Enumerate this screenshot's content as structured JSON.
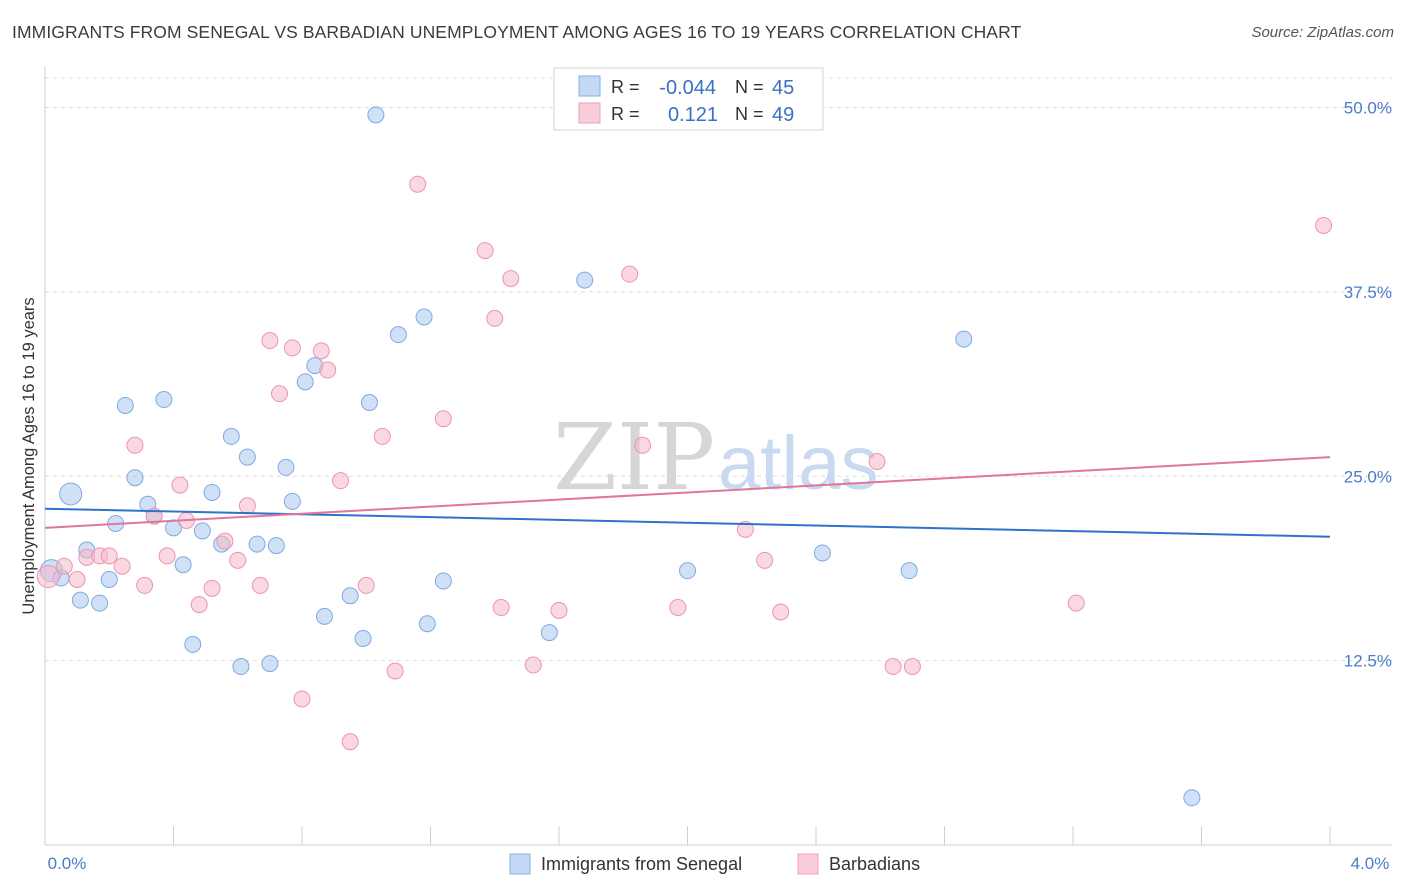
{
  "header": {
    "title": "IMMIGRANTS FROM SENEGAL VS BARBADIAN UNEMPLOYMENT AMONG AGES 16 TO 19 YEARS CORRELATION CHART",
    "source": "Source: ZipAtlas.com"
  },
  "watermark": {
    "zip": "ZIP",
    "atlas": "atlas"
  },
  "legend": {
    "rows": [
      {
        "r_label": "R =",
        "r_value": "-0.044",
        "n_label": "N =",
        "n_value": "45",
        "color": "#a9c8f0"
      },
      {
        "r_label": "R =",
        "r_value": "0.121",
        "n_label": "N =",
        "n_value": "49",
        "color": "#f5b8cb"
      }
    ]
  },
  "chart_data": {
    "type": "scatter",
    "title": "IMMIGRANTS FROM SENEGAL VS BARBADIAN UNEMPLOYMENT AMONG AGES 16 TO 19 YEARS CORRELATION CHART",
    "xlabel": "",
    "ylabel": "Unemployment Among Ages 16 to 19 years",
    "xlim": [
      0,
      4.0
    ],
    "ylim": [
      0,
      52
    ],
    "x_tick_labels": [
      "0.0%",
      "4.0%"
    ],
    "y_ticks": [
      12.5,
      25.0,
      37.5,
      50.0
    ],
    "y_tick_labels": [
      "12.5%",
      "25.0%",
      "37.5%",
      "50.0%"
    ],
    "grid": true,
    "legend_position": "top-center",
    "series": [
      {
        "name": "Immigrants from Senegal",
        "color": "#a9c8f0",
        "stroke": "#7eaae0",
        "trend_color": "#2f72c9",
        "trend": {
          "x": [
            0.0,
            4.0
          ],
          "y": [
            22.8,
            20.9
          ]
        },
        "points": [
          {
            "x": 0.02,
            "y": 18.6,
            "big": true
          },
          {
            "x": 0.05,
            "y": 18.1
          },
          {
            "x": 0.08,
            "y": 23.8,
            "big": true
          },
          {
            "x": 0.11,
            "y": 16.6
          },
          {
            "x": 0.13,
            "y": 20.0
          },
          {
            "x": 0.17,
            "y": 16.4
          },
          {
            "x": 0.2,
            "y": 18.0
          },
          {
            "x": 0.22,
            "y": 21.8
          },
          {
            "x": 0.25,
            "y": 29.8
          },
          {
            "x": 0.28,
            "y": 24.9
          },
          {
            "x": 0.32,
            "y": 23.1
          },
          {
            "x": 0.34,
            "y": 22.3
          },
          {
            "x": 0.37,
            "y": 30.2
          },
          {
            "x": 0.4,
            "y": 21.5
          },
          {
            "x": 0.43,
            "y": 19.0
          },
          {
            "x": 0.46,
            "y": 13.6
          },
          {
            "x": 0.49,
            "y": 21.3
          },
          {
            "x": 0.52,
            "y": 23.9
          },
          {
            "x": 0.55,
            "y": 20.4
          },
          {
            "x": 0.58,
            "y": 27.7
          },
          {
            "x": 0.61,
            "y": 12.1
          },
          {
            "x": 0.63,
            "y": 26.3
          },
          {
            "x": 0.66,
            "y": 20.4
          },
          {
            "x": 0.7,
            "y": 12.3
          },
          {
            "x": 0.72,
            "y": 20.3
          },
          {
            "x": 0.75,
            "y": 25.6
          },
          {
            "x": 0.77,
            "y": 23.3
          },
          {
            "x": 0.81,
            "y": 31.4
          },
          {
            "x": 0.84,
            "y": 32.5
          },
          {
            "x": 0.87,
            "y": 15.5
          },
          {
            "x": 0.95,
            "y": 16.9
          },
          {
            "x": 0.99,
            "y": 14.0
          },
          {
            "x": 1.01,
            "y": 30.0
          },
          {
            "x": 1.03,
            "y": 49.5
          },
          {
            "x": 1.1,
            "y": 34.6
          },
          {
            "x": 1.18,
            "y": 35.8
          },
          {
            "x": 1.19,
            "y": 15.0
          },
          {
            "x": 1.24,
            "y": 17.9
          },
          {
            "x": 1.57,
            "y": 14.4
          },
          {
            "x": 1.68,
            "y": 38.3
          },
          {
            "x": 2.0,
            "y": 18.6
          },
          {
            "x": 2.42,
            "y": 19.8
          },
          {
            "x": 2.69,
            "y": 18.6
          },
          {
            "x": 2.86,
            "y": 34.3
          },
          {
            "x": 3.57,
            "y": 3.2
          }
        ]
      },
      {
        "name": "Barbadians",
        "color": "#f5b8cb",
        "stroke": "#ec94b0",
        "trend_color": "#e0769c",
        "trend": {
          "x": [
            0.0,
            4.0
          ],
          "y": [
            21.5,
            26.3
          ]
        },
        "points": [
          {
            "x": 0.01,
            "y": 18.2,
            "big": true
          },
          {
            "x": 0.06,
            "y": 18.9
          },
          {
            "x": 0.1,
            "y": 18.0
          },
          {
            "x": 0.13,
            "y": 19.5
          },
          {
            "x": 0.17,
            "y": 19.6
          },
          {
            "x": 0.2,
            "y": 19.6
          },
          {
            "x": 0.24,
            "y": 18.9
          },
          {
            "x": 0.28,
            "y": 27.1
          },
          {
            "x": 0.31,
            "y": 17.6
          },
          {
            "x": 0.34,
            "y": 22.3
          },
          {
            "x": 0.38,
            "y": 19.6
          },
          {
            "x": 0.42,
            "y": 24.4
          },
          {
            "x": 0.44,
            "y": 22.0
          },
          {
            "x": 0.48,
            "y": 16.3
          },
          {
            "x": 0.52,
            "y": 17.4
          },
          {
            "x": 0.56,
            "y": 20.6
          },
          {
            "x": 0.6,
            "y": 19.3
          },
          {
            "x": 0.63,
            "y": 23.0
          },
          {
            "x": 0.67,
            "y": 17.6
          },
          {
            "x": 0.7,
            "y": 34.2
          },
          {
            "x": 0.73,
            "y": 30.6
          },
          {
            "x": 0.77,
            "y": 33.7
          },
          {
            "x": 0.8,
            "y": 9.9
          },
          {
            "x": 0.86,
            "y": 33.5
          },
          {
            "x": 0.88,
            "y": 32.2
          },
          {
            "x": 0.92,
            "y": 24.7
          },
          {
            "x": 0.95,
            "y": 7.0
          },
          {
            "x": 1.0,
            "y": 17.6
          },
          {
            "x": 1.05,
            "y": 27.7
          },
          {
            "x": 1.09,
            "y": 11.8
          },
          {
            "x": 1.16,
            "y": 44.8
          },
          {
            "x": 1.24,
            "y": 28.9
          },
          {
            "x": 1.37,
            "y": 40.3
          },
          {
            "x": 1.4,
            "y": 35.7
          },
          {
            "x": 1.42,
            "y": 16.1
          },
          {
            "x": 1.45,
            "y": 38.4
          },
          {
            "x": 1.52,
            "y": 12.2
          },
          {
            "x": 1.6,
            "y": 15.9
          },
          {
            "x": 1.82,
            "y": 38.7
          },
          {
            "x": 1.86,
            "y": 27.1
          },
          {
            "x": 1.97,
            "y": 16.1
          },
          {
            "x": 2.18,
            "y": 21.4
          },
          {
            "x": 2.24,
            "y": 19.3
          },
          {
            "x": 2.29,
            "y": 15.8
          },
          {
            "x": 2.59,
            "y": 26.0
          },
          {
            "x": 2.64,
            "y": 12.1
          },
          {
            "x": 2.7,
            "y": 12.1
          },
          {
            "x": 3.21,
            "y": 16.4
          },
          {
            "x": 3.98,
            "y": 42.0
          }
        ]
      }
    ]
  }
}
